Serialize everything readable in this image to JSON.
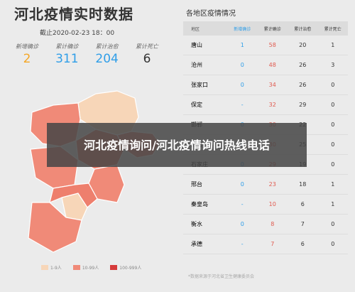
{
  "header": {
    "title": "河北疫情实时数据",
    "deadline": "截止2020-02-23 18：00"
  },
  "stats": [
    {
      "label": "新增确诊",
      "value": "2",
      "color": "#f5a623"
    },
    {
      "label": "累计确诊",
      "value": "311",
      "color": "#2f9ee8"
    },
    {
      "label": "累计治愈",
      "value": "204",
      "color": "#2f9ee8"
    },
    {
      "label": "累计死亡",
      "value": "6",
      "color": "#333333"
    }
  ],
  "map_legend": [
    {
      "label": "1-9人",
      "color": "#f7d6b8"
    },
    {
      "label": "10-99人",
      "color": "#f08a78"
    },
    {
      "label": "100-999人",
      "color": "#d63b3b"
    }
  ],
  "regions": {
    "title": "各地区疫情情况",
    "columns": [
      "地区",
      "新增确诊",
      "累计确诊",
      "累计治愈",
      "累计死亡"
    ],
    "rows": [
      {
        "area": "唐山",
        "new": "1",
        "total": "58",
        "cured": "20",
        "dead": "1"
      },
      {
        "area": "沧州",
        "new": "0",
        "total": "48",
        "cured": "26",
        "dead": "3"
      },
      {
        "area": "张家口",
        "new": "0",
        "total": "34",
        "cured": "26",
        "dead": "0"
      },
      {
        "area": "保定",
        "new": "-",
        "total": "32",
        "cured": "29",
        "dead": "0"
      },
      {
        "area": "邯郸",
        "new": "0",
        "total": "30",
        "cured": "22",
        "dead": "0"
      },
      {
        "area": "廊坊",
        "new": "0",
        "total": "30",
        "cured": "25",
        "dead": "0"
      },
      {
        "area": "石家庄",
        "new": "0",
        "total": "29",
        "cured": "19",
        "dead": "0"
      },
      {
        "area": "邢台",
        "new": "0",
        "total": "23",
        "cured": "18",
        "dead": "1"
      },
      {
        "area": "秦皇岛",
        "new": "-",
        "total": "10",
        "cured": "6",
        "dead": "1"
      },
      {
        "area": "衡水",
        "new": "0",
        "total": "8",
        "cured": "7",
        "dead": "0"
      },
      {
        "area": "承德",
        "new": "-",
        "total": "7",
        "cured": "6",
        "dead": "0"
      }
    ],
    "note": "*数据来源于河北省卫生健康委员会"
  },
  "banner": {
    "text": "河北疫情询问/河北疫情询问热线电话"
  }
}
